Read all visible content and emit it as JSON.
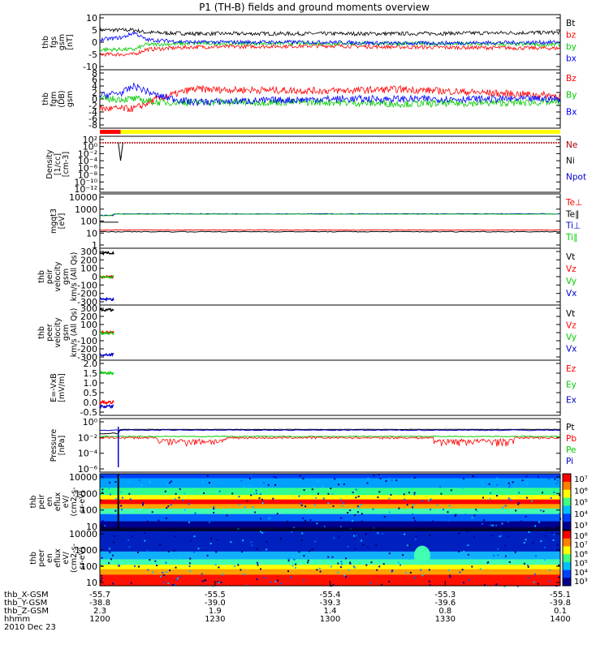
{
  "title": "P1 (TH-B) fields and ground moments overview",
  "panels": [
    {
      "id": "fgs",
      "ylabel": [
        "thb",
        "fgs",
        "gsm",
        "[nT]"
      ],
      "ticks": [
        "10",
        "5",
        "0",
        "-5",
        "-10"
      ],
      "legend": [
        {
          "t": "Bt",
          "c": "#000000"
        },
        {
          "t": "bz",
          "c": "#ff0000"
        },
        {
          "t": "by",
          "c": "#00cc00"
        },
        {
          "t": "bx",
          "c": "#0000ff"
        }
      ]
    },
    {
      "id": "fgm",
      "ylabel": [
        "thb",
        "fgm",
        "(DB)",
        "gsm"
      ],
      "ticks": [
        "8",
        "6",
        "4",
        "2",
        "0",
        "-2",
        "-4",
        "-6",
        "-8"
      ],
      "legend": [
        {
          "t": "Bz",
          "c": "#ff0000"
        },
        {
          "t": "By",
          "c": "#00cc00"
        },
        {
          "t": "Bx",
          "c": "#0000ff"
        }
      ]
    },
    {
      "id": "density",
      "ylabel": [
        "Density",
        "[1/cc]",
        "[cm-3]"
      ],
      "ticks": [
        "10²",
        "10⁰",
        "10⁻²",
        "10⁻⁴",
        "10⁻⁶",
        "10⁻⁸",
        "10⁻¹⁰",
        "10⁻¹²"
      ],
      "legend": [
        {
          "t": "Ne",
          "c": "#aa0000"
        },
        {
          "t": "Ni",
          "c": "#000000"
        },
        {
          "t": "Npot",
          "c": "#0000cc"
        }
      ]
    },
    {
      "id": "temp",
      "ylabel": [
        "mgqt3",
        "[eV]"
      ],
      "ticks": [
        "10000",
        "1000",
        "100",
        "10",
        "1"
      ],
      "legend": [
        {
          "t": "Te⊥",
          "c": "#ff0000"
        },
        {
          "t": "Te∥",
          "c": "#000000"
        },
        {
          "t": "Ti⊥",
          "c": "#0000cc"
        },
        {
          "t": "Ti∥",
          "c": "#00cc00"
        }
      ]
    },
    {
      "id": "peir_vel",
      "ylabel": [
        "thb",
        "peir",
        "velocity",
        "gsm",
        "km/s (All Qs)"
      ],
      "ticks": [
        "300",
        "200",
        "100",
        "0",
        "-100",
        "-200",
        "-300"
      ],
      "legend": [
        {
          "t": "Vt",
          "c": "#000000"
        },
        {
          "t": "Vz",
          "c": "#ff0000"
        },
        {
          "t": "Vy",
          "c": "#00cc00"
        },
        {
          "t": "Vx",
          "c": "#0000cc"
        }
      ]
    },
    {
      "id": "peer_vel",
      "ylabel": [
        "thb",
        "peer",
        "velocity",
        "gsm",
        "km/s (All Qs)"
      ],
      "ticks": [
        "300",
        "200",
        "100",
        "0",
        "-100",
        "-200",
        "-300"
      ],
      "legend": [
        {
          "t": "Vt",
          "c": "#000000"
        },
        {
          "t": "Vz",
          "c": "#ff0000"
        },
        {
          "t": "Vy",
          "c": "#00cc00"
        },
        {
          "t": "Vx",
          "c": "#0000cc"
        }
      ]
    },
    {
      "id": "efield",
      "ylabel": [
        "E=-VxB",
        "[mV/m]"
      ],
      "ticks": [
        "2.0",
        "1.5",
        "1.0",
        "0.5",
        "0.0",
        "-0.5"
      ],
      "legend": [
        {
          "t": "Ez",
          "c": "#ff0000"
        },
        {
          "t": "Ey",
          "c": "#00cc00"
        },
        {
          "t": "Ex",
          "c": "#0000cc"
        }
      ]
    },
    {
      "id": "pressure",
      "ylabel": [
        "Pressure",
        "[nPa]"
      ],
      "ticks": [
        "10⁰",
        "10⁻²",
        "10⁻⁴",
        "10⁻⁶"
      ],
      "legend": [
        {
          "t": "Pt",
          "c": "#000000"
        },
        {
          "t": "Pb",
          "c": "#ff0000"
        },
        {
          "t": "Pe",
          "c": "#00cc00"
        },
        {
          "t": "Pi",
          "c": "#0000cc"
        }
      ]
    },
    {
      "id": "peir_spec",
      "ylabel": [
        "thb",
        "peir",
        "en",
        "eflux",
        "eV/",
        "(cm2-s-",
        "sr-eV)"
      ],
      "ticks": [
        "10000",
        "1000",
        "100",
        "10"
      ],
      "cbar": [
        "10⁷",
        "10⁶",
        "10⁵",
        "10⁴",
        "10³"
      ]
    },
    {
      "id": "peer_spec",
      "ylabel": [
        "thb",
        "peer",
        "en",
        "eflux",
        "eV/",
        "(cm2-s-",
        "sr-eV)"
      ],
      "ticks": [
        "10000",
        "1000",
        "100",
        "10"
      ],
      "cbar": [
        "10⁸",
        "10⁷",
        "10⁶",
        "10⁵",
        "10⁴",
        "10³"
      ]
    }
  ],
  "footer": {
    "rows": [
      {
        "label": "thb_X-GSM",
        "values": [
          "-55.7",
          "-55.5",
          "-55.4",
          "-55.3",
          "-55.1"
        ]
      },
      {
        "label": "thb_Y-GSM",
        "values": [
          "-38.8",
          "-39.0",
          "-39.3",
          "-39.6",
          "-39.8"
        ]
      },
      {
        "label": "thb_Z-GSM",
        "values": [
          "2.3",
          "1.9",
          "1.4",
          "0.8",
          "0.1"
        ]
      },
      {
        "label": "hhmm",
        "values": [
          "1200",
          "1230",
          "1300",
          "1330",
          "1400"
        ]
      }
    ],
    "date": "2010 Dec 23"
  },
  "chart_data": [
    {
      "type": "line",
      "name": "thb fgs gsm [nT]",
      "ylim": [
        -10,
        10
      ],
      "x_hhmm": [
        "1200",
        "1230",
        "1300",
        "1330",
        "1400"
      ],
      "series": [
        {
          "name": "Bt",
          "approx": [
            [
              1200,
              5
            ],
            [
              1215,
              5
            ],
            [
              1220,
              4
            ],
            [
              1240,
              3.5
            ],
            [
              1300,
              3.5
            ],
            [
              1330,
              3.5
            ],
            [
              1400,
              4
            ]
          ]
        },
        {
          "name": "bz",
          "approx": [
            [
              1200,
              -5
            ],
            [
              1215,
              -5
            ],
            [
              1220,
              -3
            ],
            [
              1240,
              -2
            ],
            [
              1300,
              -1.5
            ],
            [
              1330,
              -2
            ],
            [
              1400,
              -2.5
            ]
          ]
        },
        {
          "name": "by",
          "approx": [
            [
              1200,
              -3
            ],
            [
              1215,
              -3
            ],
            [
              1220,
              -1
            ],
            [
              1240,
              -0.5
            ],
            [
              1300,
              -0.5
            ],
            [
              1330,
              -0.5
            ],
            [
              1400,
              -1
            ]
          ]
        },
        {
          "name": "bx",
          "approx": [
            [
              1200,
              1
            ],
            [
              1210,
              2
            ],
            [
              1215,
              4
            ],
            [
              1220,
              1
            ],
            [
              1240,
              0
            ],
            [
              1300,
              0
            ],
            [
              1330,
              -0.5
            ],
            [
              1400,
              0
            ]
          ]
        }
      ]
    },
    {
      "type": "line",
      "name": "thb fgm (DB) gsm",
      "ylim": [
        -8,
        8
      ],
      "series": [
        {
          "name": "Bz",
          "approx": [
            [
              1200,
              -3
            ],
            [
              1215,
              -3
            ],
            [
              1225,
              0
            ],
            [
              1240,
              3
            ],
            [
              1300,
              2.5
            ],
            [
              1330,
              3
            ],
            [
              1400,
              1
            ]
          ]
        },
        {
          "name": "By",
          "approx": [
            [
              1200,
              0
            ],
            [
              1215,
              0
            ],
            [
              1225,
              -1
            ],
            [
              1240,
              -1
            ],
            [
              1300,
              -1
            ],
            [
              1330,
              -1.5
            ],
            [
              1400,
              -1
            ]
          ]
        },
        {
          "name": "Bx",
          "approx": [
            [
              1200,
              1
            ],
            [
              1210,
              2
            ],
            [
              1215,
              4
            ],
            [
              1225,
              1
            ],
            [
              1240,
              -1
            ],
            [
              1300,
              0
            ],
            [
              1400,
              0
            ]
          ]
        }
      ]
    },
    {
      "type": "line",
      "name": "Density [1/cc]",
      "ylog": true,
      "ylim": [
        "1e-13",
        "1e2"
      ],
      "series": [
        {
          "name": "Ne",
          "approx_value": "~1e0"
        },
        {
          "name": "Ni",
          "approx_value": "~1e0, dip near 1208"
        }
      ]
    },
    {
      "type": "line",
      "name": "mgqt3 [eV]",
      "ylog": true,
      "ylim": [
        1,
        10000
      ],
      "series": [
        {
          "name": "Ti⊥",
          "approx_value": "~400"
        },
        {
          "name": "Te∥",
          "approx_value": "~15"
        },
        {
          "name": "Te⊥",
          "approx_value": "~20"
        }
      ]
    },
    {
      "type": "scatter",
      "name": "thb peir velocity gsm",
      "ylim": [
        -300,
        300
      ],
      "note": "data only near 1200-1205"
    },
    {
      "type": "scatter",
      "name": "thb peer velocity gsm",
      "ylim": [
        -300,
        300
      ],
      "note": "data only near 1200-1205"
    },
    {
      "type": "scatter",
      "name": "E=-VxB [mV/m]",
      "ylim": [
        -0.5,
        2.0
      ],
      "note": "data only near 1200-1205"
    },
    {
      "type": "line",
      "name": "Pressure [nPa]",
      "ylog": true,
      "ylim": [
        "1e-6",
        "1e0"
      ],
      "series": [
        {
          "name": "Pt",
          "approx_value": "~1e-1"
        },
        {
          "name": "Pb",
          "approx_value": "~1e-2 to 1e-3"
        },
        {
          "name": "Pe",
          "approx_value": "~1e-2"
        },
        {
          "name": "Pi",
          "approx_value": "~1e-1"
        }
      ]
    },
    {
      "type": "heatmap",
      "name": "thb peir en eflux",
      "ylog": true,
      "ylim": [
        10,
        20000
      ],
      "color_range": [
        "1e3",
        "1e7"
      ]
    },
    {
      "type": "heatmap",
      "name": "thb peer en eflux",
      "ylog": true,
      "ylim": [
        10,
        20000
      ],
      "color_range": [
        "1e3",
        "1e8"
      ]
    }
  ]
}
